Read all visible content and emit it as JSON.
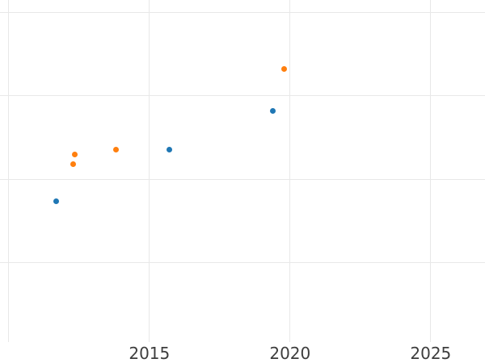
{
  "chart_data": {
    "type": "scatter",
    "title": "",
    "xlabel": "",
    "ylabel": "",
    "grid": true,
    "legend": false,
    "background_color": "#ffffff",
    "grid_color": "#e8e8e8",
    "tick_label_color": "#3d3d3d",
    "marker_diameter_px": 7,
    "x_axis": {
      "tick_values": [
        2015,
        2020,
        2025
      ],
      "tick_labels": [
        "2015",
        "2020",
        "2025"
      ],
      "gridline_values": [
        2010,
        2015,
        2020,
        2025
      ],
      "visible_range": [
        2009.69,
        2026.93
      ]
    },
    "y_axis": {
      "tick_values": [],
      "tick_labels": [],
      "gridline_values": [
        1,
        2,
        3,
        4
      ],
      "visible_range": [
        0.05,
        4.15
      ],
      "note": "no y tick labels visible; values estimated in gridline units"
    },
    "series": [
      {
        "name": "blue-series",
        "color": "#1f77b4",
        "points": [
          {
            "x": 2011.7,
            "y": 1.74
          },
          {
            "x": 2015.7,
            "y": 2.36
          },
          {
            "x": 2019.38,
            "y": 2.82
          }
        ]
      },
      {
        "name": "orange-series",
        "color": "#ff7f0e",
        "points": [
          {
            "x": 2012.3,
            "y": 2.18
          },
          {
            "x": 2012.36,
            "y": 2.3
          },
          {
            "x": 2013.81,
            "y": 2.36
          },
          {
            "x": 2019.8,
            "y": 3.32
          }
        ]
      }
    ]
  }
}
